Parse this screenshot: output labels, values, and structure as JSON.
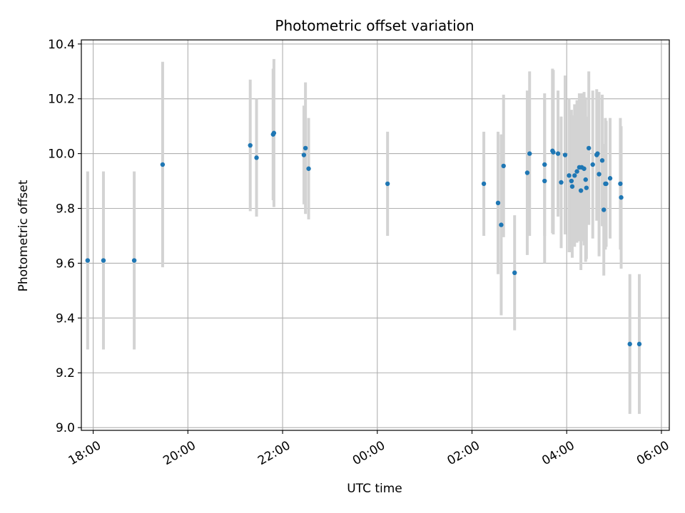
{
  "chart_data": {
    "type": "scatter",
    "title": "Photometric offset variation",
    "xlabel": "UTC time",
    "ylabel": "Photometric offset",
    "xlim": [
      "17:45",
      "06:10"
    ],
    "ylim": [
      8.99,
      10.415
    ],
    "x_ticks": [
      "18:00",
      "20:00",
      "22:00",
      "00:00",
      "02:00",
      "04:00",
      "06:00"
    ],
    "y_ticks": [
      "9.0",
      "9.2",
      "9.4",
      "9.6",
      "9.8",
      "10.0",
      "10.2",
      "10.4"
    ],
    "grid": true,
    "colors": {
      "point": "#1f77b4",
      "errorbar": "#d3d3d3",
      "grid": "#b0b0b0"
    },
    "series": [
      {
        "x": [
          "17:53",
          "18:13",
          "18:52",
          "19:28",
          "21:19",
          "21:27",
          "21:48",
          "21:49",
          "22:27",
          "22:29",
          "22:33",
          "00:13",
          "02:15",
          "02:33",
          "02:37",
          "02:40",
          "02:54",
          "03:10",
          "03:13",
          "03:32",
          "03:32",
          "03:42",
          "03:43",
          "03:49",
          "03:53",
          "03:58",
          "04:03",
          "04:06",
          "04:07",
          "04:10",
          "04:13",
          "04:16",
          "04:18",
          "04:19",
          "04:22",
          "04:24",
          "04:25",
          "04:28",
          "04:33",
          "04:38",
          "04:39",
          "04:41",
          "04:45",
          "04:47",
          "04:49",
          "04:50",
          "04:55",
          "05:08",
          "05:09",
          "05:20",
          "05:32"
        ],
        "y": [
          9.61,
          9.61,
          9.61,
          9.96,
          10.03,
          9.985,
          10.07,
          10.075,
          9.995,
          10.02,
          9.945,
          9.89,
          9.89,
          9.82,
          9.74,
          9.955,
          9.565,
          9.93,
          10.0,
          9.96,
          9.9,
          10.01,
          10.005,
          10.0,
          9.895,
          9.995,
          9.92,
          9.9,
          9.88,
          9.92,
          9.935,
          9.95,
          9.865,
          9.95,
          9.945,
          9.905,
          9.875,
          10.02,
          9.96,
          9.995,
          10.0,
          9.925,
          9.975,
          9.795,
          9.89,
          9.89,
          9.91,
          9.89,
          9.84,
          9.305,
          9.305
        ],
        "yerr": [
          0.325,
          0.325,
          0.325,
          0.375,
          0.24,
          0.215,
          0.24,
          0.27,
          0.18,
          0.24,
          0.185,
          0.19,
          0.19,
          0.26,
          0.33,
          0.26,
          0.21,
          0.3,
          0.3,
          0.26,
          0.3,
          0.3,
          0.3,
          0.23,
          0.24,
          0.29,
          0.28,
          0.26,
          0.26,
          0.26,
          0.26,
          0.27,
          0.29,
          0.27,
          0.28,
          0.3,
          0.26,
          0.28,
          0.27,
          0.24,
          0.22,
          0.3,
          0.24,
          0.24,
          0.24,
          0.23,
          0.22,
          0.24,
          0.26,
          0.255,
          0.255
        ]
      }
    ]
  }
}
